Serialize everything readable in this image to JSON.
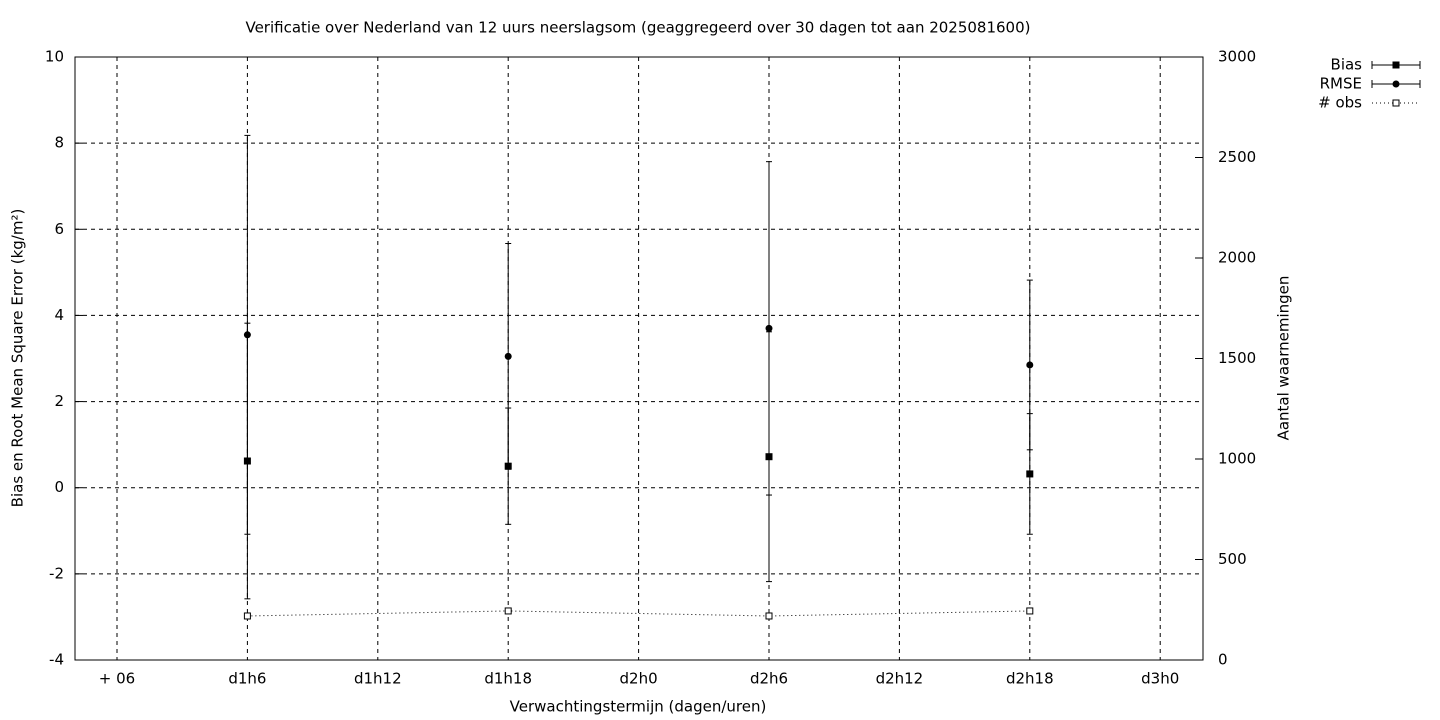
{
  "chart_data": {
    "type": "errorbar",
    "title": "Verificatie over Nederland van 12 uurs neerslagsom (geaggregeerd over 30 dagen tot aan 2025081600)",
    "x_label": "Verwachtingstermijn (dagen/uren)",
    "y_label": "Bias en Root Mean Square Error (kg/m²)",
    "y2_label": "Aantal waarnemingen",
    "categories": [
      "+ 06",
      "d1h6",
      "d1h12",
      "d1h18",
      "d2h0",
      "d2h6",
      "d2h12",
      "d2h18",
      "d3h0"
    ],
    "x": [
      "d1h6",
      "d1h18",
      "d2h6",
      "d2h18"
    ],
    "ylim": [
      -4,
      10
    ],
    "yticks": [
      -4,
      -2,
      0,
      2,
      4,
      6,
      8,
      10
    ],
    "y2lim": [
      0,
      3000
    ],
    "y2ticks": [
      0,
      500,
      1000,
      1500,
      2000,
      2500,
      3000
    ],
    "grid": true,
    "legend": "outside-right-top",
    "series": [
      {
        "name": "Bias",
        "color": "#000000",
        "marker": "square",
        "values": [
          0.62,
          0.5,
          0.72,
          0.32
        ],
        "errors": [
          3.2,
          1.35,
          2.9,
          1.4
        ]
      },
      {
        "name": "RMSE",
        "color": "#000000",
        "marker": "circle",
        "values": [
          3.55,
          3.05,
          3.7,
          2.85
        ],
        "errors": [
          4.63,
          2.62,
          3.87,
          1.97
        ]
      },
      {
        "name": "# obs",
        "color": "#000000",
        "marker": "open-square",
        "axis": "y2",
        "values": [
          219,
          244,
          219,
          244
        ]
      }
    ]
  }
}
